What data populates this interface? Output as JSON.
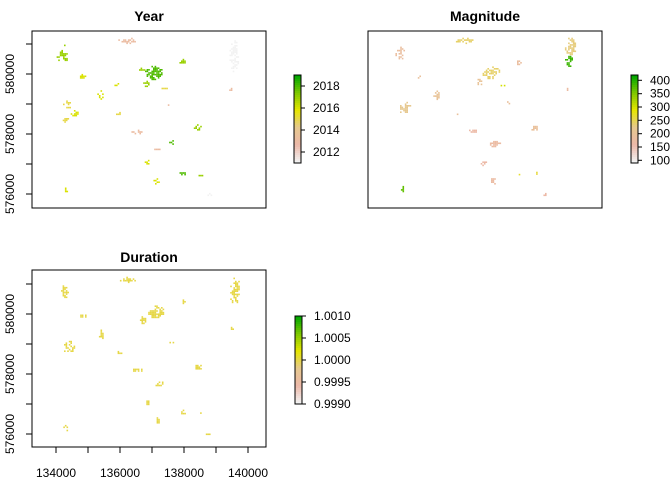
{
  "figure": {
    "background": "#ffffff"
  },
  "chart_data": [
    {
      "type": "heatmap",
      "title": "Year",
      "x_ticks": [],
      "y_ticks": [
        "576000",
        "578000",
        "580000"
      ],
      "xlim": [
        133000,
        140700
      ],
      "ylim": [
        575400,
        581200
      ],
      "legend": {
        "placement": "right",
        "range": [
          2011,
          2019
        ],
        "ticks": [
          "2012",
          "2014",
          "2016",
          "2018"
        ],
        "tick_values": [
          2012,
          2014,
          2016,
          2018
        ],
        "colors": [
          "#f2f2f2",
          "#ecb8a8",
          "#e6c88e",
          "#e6e600",
          "#7fc800",
          "#00a600"
        ]
      },
      "patches": [
        {
          "x": 134000,
          "y": 580400,
          "dx": 380,
          "dy": 360,
          "value": 2017
        },
        {
          "x": 134050,
          "y": 580720,
          "dx": 100,
          "dy": 70,
          "value": 2017
        },
        {
          "x": 134650,
          "y": 579720,
          "dx": 250,
          "dy": 150,
          "value": 2016
        },
        {
          "x": 134150,
          "y": 578800,
          "dx": 260,
          "dy": 250,
          "value": 2015
        },
        {
          "x": 134400,
          "y": 578500,
          "dx": 250,
          "dy": 220,
          "value": 2016
        },
        {
          "x": 134100,
          "y": 578300,
          "dx": 180,
          "dy": 200,
          "value": 2015
        },
        {
          "x": 135250,
          "y": 579100,
          "dx": 200,
          "dy": 320,
          "value": 2016
        },
        {
          "x": 135850,
          "y": 578500,
          "dx": 170,
          "dy": 100,
          "value": 2015
        },
        {
          "x": 135800,
          "y": 579450,
          "dx": 180,
          "dy": 90,
          "value": 2016
        },
        {
          "x": 136150,
          "y": 580900,
          "dx": 620,
          "dy": 160,
          "value": 2013
        },
        {
          "x": 137000,
          "y": 579850,
          "dx": 560,
          "dy": 420,
          "value": 2018
        },
        {
          "x": 136600,
          "y": 579950,
          "dx": 160,
          "dy": 100,
          "value": 2017
        },
        {
          "x": 136750,
          "y": 579500,
          "dx": 180,
          "dy": 250,
          "value": 2017
        },
        {
          "x": 137350,
          "y": 579350,
          "dx": 180,
          "dy": 90,
          "value": 2015
        },
        {
          "x": 137950,
          "y": 580180,
          "dx": 200,
          "dy": 220,
          "value": 2017
        },
        {
          "x": 137550,
          "y": 578800,
          "dx": 160,
          "dy": 100,
          "value": 2013
        },
        {
          "x": 136450,
          "y": 577900,
          "dx": 360,
          "dy": 140,
          "value": 2013
        },
        {
          "x": 137100,
          "y": 577350,
          "dx": 160,
          "dy": 100,
          "value": 2013
        },
        {
          "x": 137600,
          "y": 577550,
          "dx": 180,
          "dy": 150,
          "value": 2018
        },
        {
          "x": 138450,
          "y": 578050,
          "dx": 250,
          "dy": 190,
          "value": 2017
        },
        {
          "x": 136800,
          "y": 576900,
          "dx": 180,
          "dy": 160,
          "value": 2016
        },
        {
          "x": 137100,
          "y": 576300,
          "dx": 210,
          "dy": 260,
          "value": 2016
        },
        {
          "x": 137950,
          "y": 576550,
          "dx": 190,
          "dy": 150,
          "value": 2018
        },
        {
          "x": 138550,
          "y": 576500,
          "dx": 140,
          "dy": 80,
          "value": 2017
        },
        {
          "x": 139650,
          "y": 580400,
          "dx": 300,
          "dy": 1100,
          "value": 2011
        },
        {
          "x": 139550,
          "y": 579300,
          "dx": 120,
          "dy": 80,
          "value": 2013
        },
        {
          "x": 138800,
          "y": 575850,
          "dx": 160,
          "dy": 90,
          "value": 2011
        },
        {
          "x": 134100,
          "y": 576050,
          "dx": 140,
          "dy": 250,
          "value": 2016
        }
      ]
    },
    {
      "type": "heatmap",
      "title": "Magnitude",
      "x_ticks": [],
      "y_ticks": [],
      "xlim": [
        133000,
        140700
      ],
      "ylim": [
        575400,
        581200
      ],
      "legend": {
        "placement": "right",
        "range": [
          90,
          420
        ],
        "ticks": [
          "100",
          "150",
          "200",
          "250",
          "300",
          "350",
          "400"
        ],
        "tick_values": [
          100,
          150,
          200,
          250,
          300,
          350,
          400
        ],
        "colors": [
          "#f2f2f2",
          "#ecb8a8",
          "#e6c88e",
          "#e6e600",
          "#7fc800",
          "#00a600"
        ]
      },
      "patches": [
        {
          "x": 134050,
          "y": 580500,
          "dx": 300,
          "dy": 380,
          "value": 180
        },
        {
          "x": 134650,
          "y": 579720,
          "dx": 230,
          "dy": 150,
          "value": 190
        },
        {
          "x": 134200,
          "y": 578700,
          "dx": 400,
          "dy": 360,
          "value": 220
        },
        {
          "x": 135250,
          "y": 579100,
          "dx": 200,
          "dy": 300,
          "value": 200
        },
        {
          "x": 135850,
          "y": 578500,
          "dx": 170,
          "dy": 100,
          "value": 190
        },
        {
          "x": 136150,
          "y": 580900,
          "dx": 620,
          "dy": 160,
          "value": 240
        },
        {
          "x": 137050,
          "y": 579850,
          "dx": 560,
          "dy": 380,
          "value": 240
        },
        {
          "x": 136650,
          "y": 579600,
          "dx": 200,
          "dy": 280,
          "value": 200
        },
        {
          "x": 137400,
          "y": 579450,
          "dx": 180,
          "dy": 80,
          "value": 300
        },
        {
          "x": 137950,
          "y": 580180,
          "dx": 200,
          "dy": 220,
          "value": 180
        },
        {
          "x": 137550,
          "y": 578850,
          "dx": 160,
          "dy": 100,
          "value": 190
        },
        {
          "x": 136450,
          "y": 577950,
          "dx": 360,
          "dy": 140,
          "value": 160
        },
        {
          "x": 137150,
          "y": 577500,
          "dx": 380,
          "dy": 200,
          "value": 170
        },
        {
          "x": 138450,
          "y": 578050,
          "dx": 250,
          "dy": 190,
          "value": 190
        },
        {
          "x": 136800,
          "y": 576900,
          "dx": 180,
          "dy": 160,
          "value": 160
        },
        {
          "x": 137100,
          "y": 576300,
          "dx": 210,
          "dy": 260,
          "value": 170
        },
        {
          "x": 137950,
          "y": 576550,
          "dx": 190,
          "dy": 150,
          "value": 270
        },
        {
          "x": 138550,
          "y": 576550,
          "dx": 140,
          "dy": 80,
          "value": 260
        },
        {
          "x": 139650,
          "y": 580700,
          "dx": 340,
          "dy": 560,
          "value": 230
        },
        {
          "x": 139600,
          "y": 580250,
          "dx": 340,
          "dy": 380,
          "value": 390
        },
        {
          "x": 139550,
          "y": 579300,
          "dx": 120,
          "dy": 80,
          "value": 170
        },
        {
          "x": 138800,
          "y": 575850,
          "dx": 160,
          "dy": 90,
          "value": 160
        },
        {
          "x": 134100,
          "y": 576050,
          "dx": 140,
          "dy": 250,
          "value": 370
        }
      ]
    },
    {
      "type": "heatmap",
      "title": "Duration",
      "x_ticks": [
        "134000",
        "136000",
        "138000",
        "140000"
      ],
      "x_tick_values": [
        134000,
        136000,
        138000,
        140000
      ],
      "y_ticks": [
        "576000",
        "578000",
        "580000"
      ],
      "y_tick_values": [
        576000,
        578000,
        580000
      ],
      "xlim": [
        133000,
        140700
      ],
      "ylim": [
        575400,
        581200
      ],
      "legend": {
        "placement": "right",
        "range": [
          0.999,
          1.001
        ],
        "ticks": [
          "1.0010",
          "1.0005",
          "1.0000",
          "0.9995",
          "0.9990"
        ],
        "tick_values": [
          1.001,
          1.0005,
          1.0,
          0.9995,
          0.999
        ],
        "colors": [
          "#f2f2f2",
          "#ecb8a8",
          "#e6c88e",
          "#e6e600",
          "#7fc800",
          "#00a600"
        ]
      },
      "patches": [
        {
          "x": 134050,
          "y": 580500,
          "dx": 300,
          "dy": 400,
          "value": 1.0
        },
        {
          "x": 134650,
          "y": 579720,
          "dx": 230,
          "dy": 150,
          "value": 1.0
        },
        {
          "x": 134200,
          "y": 578700,
          "dx": 400,
          "dy": 360,
          "value": 1.0
        },
        {
          "x": 135250,
          "y": 579100,
          "dx": 200,
          "dy": 300,
          "value": 1.0
        },
        {
          "x": 135850,
          "y": 578500,
          "dx": 170,
          "dy": 100,
          "value": 1.0
        },
        {
          "x": 136150,
          "y": 580900,
          "dx": 620,
          "dy": 160,
          "value": 1.0
        },
        {
          "x": 137050,
          "y": 579850,
          "dx": 560,
          "dy": 380,
          "value": 1.0
        },
        {
          "x": 136650,
          "y": 579600,
          "dx": 200,
          "dy": 280,
          "value": 1.0
        },
        {
          "x": 137950,
          "y": 580180,
          "dx": 200,
          "dy": 220,
          "value": 1.0
        },
        {
          "x": 137550,
          "y": 578850,
          "dx": 160,
          "dy": 100,
          "value": 1.0
        },
        {
          "x": 136450,
          "y": 577950,
          "dx": 360,
          "dy": 140,
          "value": 1.0
        },
        {
          "x": 137150,
          "y": 577500,
          "dx": 380,
          "dy": 200,
          "value": 1.0
        },
        {
          "x": 138450,
          "y": 578050,
          "dx": 250,
          "dy": 190,
          "value": 1.0
        },
        {
          "x": 136800,
          "y": 576900,
          "dx": 180,
          "dy": 160,
          "value": 1.0
        },
        {
          "x": 137100,
          "y": 576300,
          "dx": 210,
          "dy": 260,
          "value": 1.0
        },
        {
          "x": 137950,
          "y": 576550,
          "dx": 190,
          "dy": 150,
          "value": 1.0
        },
        {
          "x": 138550,
          "y": 576550,
          "dx": 140,
          "dy": 80,
          "value": 1.0
        },
        {
          "x": 139650,
          "y": 580550,
          "dx": 360,
          "dy": 800,
          "value": 1.0
        },
        {
          "x": 139550,
          "y": 579300,
          "dx": 120,
          "dy": 80,
          "value": 1.0
        },
        {
          "x": 138800,
          "y": 575850,
          "dx": 160,
          "dy": 90,
          "value": 1.0
        },
        {
          "x": 134100,
          "y": 576050,
          "dx": 140,
          "dy": 250,
          "value": 1.0
        }
      ]
    }
  ]
}
